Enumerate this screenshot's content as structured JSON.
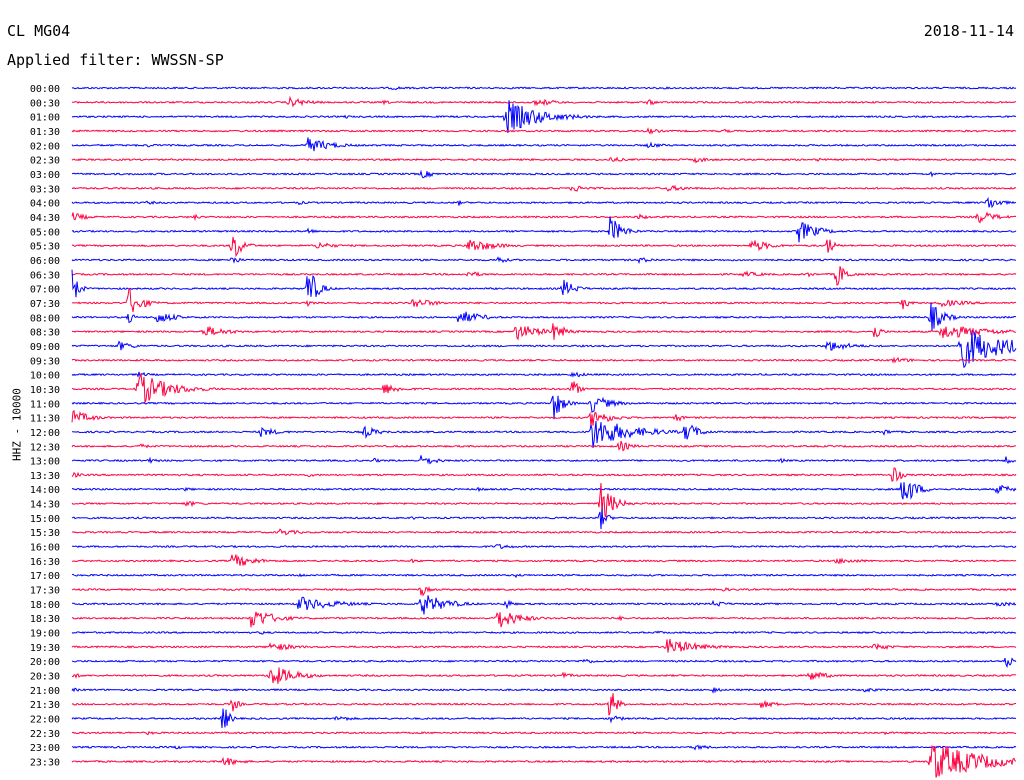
{
  "header": {
    "station": "CL MG04",
    "date": "2018-11-14",
    "filter": "Applied filter: WWSSN-SP"
  },
  "colors": {
    "blue": "#0000ff",
    "red": "#ff0040"
  },
  "chart_data": {
    "type": "line",
    "ylabel": "HHZ - 10000",
    "colors_alternate": [
      "#0000ff",
      "#ff0040"
    ],
    "traces": [
      {
        "label": "00:00",
        "events": [
          {
            "t": 0.34,
            "a": 2,
            "d": 0.025
          }
        ]
      },
      {
        "label": "00:30",
        "events": [
          {
            "t": 0.23,
            "a": 5,
            "d": 0.035
          },
          {
            "t": 0.33,
            "a": 2,
            "d": 0.02
          },
          {
            "t": 0.49,
            "a": 3,
            "d": 0.02
          },
          {
            "t": 0.5,
            "a": 3,
            "d": 0.03
          },
          {
            "t": 0.61,
            "a": 3,
            "d": 0.02
          }
        ]
      },
      {
        "label": "01:00",
        "events": [
          {
            "t": 0.29,
            "a": 2,
            "d": 0.01
          },
          {
            "t": 0.46,
            "a": 18,
            "d": 0.055
          }
        ]
      },
      {
        "label": "01:30",
        "events": [
          {
            "t": 0.61,
            "a": 3,
            "d": 0.025
          },
          {
            "t": 0.69,
            "a": 2,
            "d": 0.02
          }
        ]
      },
      {
        "label": "02:00",
        "events": [
          {
            "t": 0.08,
            "a": 2,
            "d": 0.02
          },
          {
            "t": 0.25,
            "a": 8,
            "d": 0.04
          },
          {
            "t": 0.61,
            "a": 3,
            "d": 0.03
          }
        ]
      },
      {
        "label": "02:30",
        "events": [
          {
            "t": 0.57,
            "a": 3,
            "d": 0.025
          },
          {
            "t": 0.66,
            "a": 3,
            "d": 0.03
          },
          {
            "t": 0.79,
            "a": 2,
            "d": 0.02
          }
        ]
      },
      {
        "label": "03:00",
        "events": [
          {
            "t": 0.37,
            "a": 5,
            "d": 0.02
          },
          {
            "t": 0.91,
            "a": 3,
            "d": 0.01
          }
        ]
      },
      {
        "label": "03:30",
        "events": [
          {
            "t": 0.53,
            "a": 4,
            "d": 0.03
          },
          {
            "t": 0.63,
            "a": 3,
            "d": 0.05
          }
        ]
      },
      {
        "label": "04:00",
        "events": [
          {
            "t": 0.08,
            "a": 2,
            "d": 0.02
          },
          {
            "t": 0.24,
            "a": 2,
            "d": 0.02
          },
          {
            "t": 0.41,
            "a": 3,
            "d": 0.005
          },
          {
            "t": 0.97,
            "a": 8,
            "d": 0.02
          }
        ]
      },
      {
        "label": "04:30",
        "events": [
          {
            "t": 0.0,
            "a": 5,
            "d": 0.025
          },
          {
            "t": 0.13,
            "a": 3,
            "d": 0.01
          },
          {
            "t": 0.6,
            "a": 3,
            "d": 0.02
          },
          {
            "t": 0.96,
            "a": 7,
            "d": 0.03
          }
        ]
      },
      {
        "label": "05:00",
        "events": [
          {
            "t": 0.25,
            "a": 4,
            "d": 0.01
          },
          {
            "t": 0.57,
            "a": 16,
            "d": 0.02
          },
          {
            "t": 0.77,
            "a": 12,
            "d": 0.03
          }
        ]
      },
      {
        "label": "05:30",
        "events": [
          {
            "t": 0.17,
            "a": 18,
            "d": 0.015
          },
          {
            "t": 0.26,
            "a": 4,
            "d": 0.03
          },
          {
            "t": 0.42,
            "a": 8,
            "d": 0.04
          },
          {
            "t": 0.72,
            "a": 7,
            "d": 0.03
          },
          {
            "t": 0.8,
            "a": 11,
            "d": 0.01
          }
        ]
      },
      {
        "label": "06:00",
        "events": [
          {
            "t": 0.17,
            "a": 6,
            "d": 0.01
          },
          {
            "t": 0.45,
            "a": 5,
            "d": 0.015
          },
          {
            "t": 0.6,
            "a": 3,
            "d": 0.03
          }
        ]
      },
      {
        "label": "06:30",
        "events": [
          {
            "t": 0.42,
            "a": 4,
            "d": 0.02
          },
          {
            "t": 0.71,
            "a": 3,
            "d": 0.04
          },
          {
            "t": 0.78,
            "a": 3,
            "d": 0.01
          },
          {
            "t": 0.81,
            "a": 14,
            "d": 0.015
          }
        ]
      },
      {
        "label": "07:00",
        "events": [
          {
            "t": 0.0,
            "a": 20,
            "d": 0.01
          },
          {
            "t": 0.25,
            "a": 24,
            "d": 0.015
          },
          {
            "t": 0.52,
            "a": 10,
            "d": 0.02
          }
        ]
      },
      {
        "label": "07:30",
        "events": [
          {
            "t": 0.06,
            "a": 16,
            "d": 0.02
          },
          {
            "t": 0.25,
            "a": 3,
            "d": 0.01
          },
          {
            "t": 0.36,
            "a": 6,
            "d": 0.035
          },
          {
            "t": 0.88,
            "a": 8,
            "d": 0.01
          },
          {
            "t": 0.92,
            "a": 4,
            "d": 0.05
          }
        ]
      },
      {
        "label": "08:00",
        "events": [
          {
            "t": 0.06,
            "a": 6,
            "d": 0.01
          },
          {
            "t": 0.09,
            "a": 7,
            "d": 0.03
          },
          {
            "t": 0.41,
            "a": 8,
            "d": 0.035
          },
          {
            "t": 0.91,
            "a": 16,
            "d": 0.02
          }
        ]
      },
      {
        "label": "08:30",
        "events": [
          {
            "t": 0.14,
            "a": 6,
            "d": 0.04
          },
          {
            "t": 0.47,
            "a": 9,
            "d": 0.04
          },
          {
            "t": 0.51,
            "a": 10,
            "d": 0.02
          },
          {
            "t": 0.85,
            "a": 10,
            "d": 0.01
          },
          {
            "t": 0.92,
            "a": 8,
            "d": 0.08
          }
        ]
      },
      {
        "label": "09:00",
        "events": [
          {
            "t": 0.05,
            "a": 5,
            "d": 0.025
          },
          {
            "t": 0.8,
            "a": 6,
            "d": 0.04
          },
          {
            "t": 0.94,
            "a": 24,
            "d": 0.07
          }
        ]
      },
      {
        "label": "09:30",
        "events": [
          {
            "t": 0.87,
            "a": 3,
            "d": 0.04
          }
        ]
      },
      {
        "label": "10:00",
        "events": [
          {
            "t": 0.07,
            "a": 3,
            "d": 0.02
          },
          {
            "t": 0.53,
            "a": 3,
            "d": 0.03
          }
        ]
      },
      {
        "label": "10:30",
        "events": [
          {
            "t": 0.07,
            "a": 18,
            "d": 0.05
          },
          {
            "t": 0.33,
            "a": 6,
            "d": 0.03
          },
          {
            "t": 0.53,
            "a": 12,
            "d": 0.01
          }
        ]
      },
      {
        "label": "11:00",
        "events": [
          {
            "t": 0.51,
            "a": 18,
            "d": 0.015
          },
          {
            "t": 0.55,
            "a": 10,
            "d": 0.03
          }
        ]
      },
      {
        "label": "11:30",
        "events": [
          {
            "t": 0.0,
            "a": 8,
            "d": 0.03
          },
          {
            "t": 0.55,
            "a": 10,
            "d": 0.03
          },
          {
            "t": 0.64,
            "a": 6,
            "d": 0.01
          }
        ]
      },
      {
        "label": "12:00",
        "events": [
          {
            "t": 0.2,
            "a": 5,
            "d": 0.03
          },
          {
            "t": 0.31,
            "a": 6,
            "d": 0.025
          },
          {
            "t": 0.55,
            "a": 18,
            "d": 0.06
          },
          {
            "t": 0.65,
            "a": 12,
            "d": 0.02
          },
          {
            "t": 0.86,
            "a": 3,
            "d": 0.02
          }
        ]
      },
      {
        "label": "12:30",
        "events": [
          {
            "t": 0.07,
            "a": 3,
            "d": 0.02
          },
          {
            "t": 0.58,
            "a": 6,
            "d": 0.02
          },
          {
            "t": 0.69,
            "a": 2,
            "d": 0.02
          }
        ]
      },
      {
        "label": "13:00",
        "events": [
          {
            "t": 0.08,
            "a": 3,
            "d": 0.02
          },
          {
            "t": 0.32,
            "a": 3,
            "d": 0.01
          },
          {
            "t": 0.37,
            "a": 6,
            "d": 0.025
          },
          {
            "t": 0.75,
            "a": 3,
            "d": 0.01
          },
          {
            "t": 0.99,
            "a": 5,
            "d": 0.01
          }
        ]
      },
      {
        "label": "13:30",
        "events": [
          {
            "t": 0.0,
            "a": 3,
            "d": 0.02
          },
          {
            "t": 0.25,
            "a": 2,
            "d": 0.02
          },
          {
            "t": 0.87,
            "a": 14,
            "d": 0.01
          }
        ]
      },
      {
        "label": "14:00",
        "events": [
          {
            "t": 0.12,
            "a": 2,
            "d": 0.02
          },
          {
            "t": 0.43,
            "a": 2,
            "d": 0.02
          },
          {
            "t": 0.88,
            "a": 20,
            "d": 0.02
          },
          {
            "t": 0.98,
            "a": 5,
            "d": 0.03
          }
        ]
      },
      {
        "label": "14:30",
        "events": [
          {
            "t": 0.12,
            "a": 3,
            "d": 0.03
          },
          {
            "t": 0.56,
            "a": 22,
            "d": 0.02
          }
        ]
      },
      {
        "label": "15:00",
        "events": [
          {
            "t": 0.36,
            "a": 2,
            "d": 0.02
          },
          {
            "t": 0.56,
            "a": 12,
            "d": 0.01
          }
        ]
      },
      {
        "label": "15:30",
        "events": [
          {
            "t": 0.22,
            "a": 4,
            "d": 0.03
          }
        ]
      },
      {
        "label": "16:00",
        "events": [
          {
            "t": 0.45,
            "a": 3,
            "d": 0.03
          }
        ]
      },
      {
        "label": "16:30",
        "events": [
          {
            "t": 0.17,
            "a": 8,
            "d": 0.035
          },
          {
            "t": 0.36,
            "a": 2,
            "d": 0.02
          },
          {
            "t": 0.81,
            "a": 3,
            "d": 0.05
          }
        ]
      },
      {
        "label": "17:00",
        "events": [
          {
            "t": 0.24,
            "a": 2,
            "d": 0.02
          },
          {
            "t": 0.47,
            "a": 2,
            "d": 0.02
          }
        ]
      },
      {
        "label": "17:30",
        "events": [
          {
            "t": 0.37,
            "a": 8,
            "d": 0.01
          },
          {
            "t": 0.69,
            "a": 2,
            "d": 0.02
          }
        ]
      },
      {
        "label": "18:00",
        "events": [
          {
            "t": 0.24,
            "a": 8,
            "d": 0.06
          },
          {
            "t": 0.37,
            "a": 12,
            "d": 0.04
          },
          {
            "t": 0.46,
            "a": 6,
            "d": 0.01
          },
          {
            "t": 0.68,
            "a": 4,
            "d": 0.02
          },
          {
            "t": 0.98,
            "a": 3,
            "d": 0.03
          }
        ]
      },
      {
        "label": "18:30",
        "events": [
          {
            "t": 0.19,
            "a": 12,
            "d": 0.035
          },
          {
            "t": 0.45,
            "a": 12,
            "d": 0.035
          },
          {
            "t": 0.58,
            "a": 2,
            "d": 0.02
          }
        ]
      },
      {
        "label": "19:00",
        "events": [
          {
            "t": 0.2,
            "a": 2,
            "d": 0.02
          },
          {
            "t": 0.62,
            "a": 2,
            "d": 0.02
          }
        ]
      },
      {
        "label": "19:30",
        "events": [
          {
            "t": 0.21,
            "a": 5,
            "d": 0.04
          },
          {
            "t": 0.63,
            "a": 9,
            "d": 0.05
          },
          {
            "t": 0.85,
            "a": 4,
            "d": 0.03
          }
        ]
      },
      {
        "label": "20:00",
        "events": [
          {
            "t": 0.54,
            "a": 3,
            "d": 0.03
          },
          {
            "t": 0.99,
            "a": 8,
            "d": 0.01
          }
        ]
      },
      {
        "label": "20:30",
        "events": [
          {
            "t": 0.0,
            "a": 3,
            "d": 0.02
          },
          {
            "t": 0.21,
            "a": 12,
            "d": 0.04
          },
          {
            "t": 0.52,
            "a": 3,
            "d": 0.02
          },
          {
            "t": 0.78,
            "a": 6,
            "d": 0.03
          }
        ]
      },
      {
        "label": "21:00",
        "events": [
          {
            "t": 0.0,
            "a": 2,
            "d": 0.02
          },
          {
            "t": 0.68,
            "a": 4,
            "d": 0.01
          },
          {
            "t": 0.84,
            "a": 3,
            "d": 0.02
          }
        ]
      },
      {
        "label": "21:30",
        "events": [
          {
            "t": 0.17,
            "a": 8,
            "d": 0.01
          },
          {
            "t": 0.57,
            "a": 20,
            "d": 0.01
          },
          {
            "t": 0.73,
            "a": 4,
            "d": 0.03
          }
        ]
      },
      {
        "label": "22:00",
        "events": [
          {
            "t": 0.16,
            "a": 16,
            "d": 0.01
          },
          {
            "t": 0.28,
            "a": 3,
            "d": 0.03
          },
          {
            "t": 0.57,
            "a": 4,
            "d": 0.02
          }
        ]
      },
      {
        "label": "22:30",
        "events": [
          {
            "t": 0.08,
            "a": 2,
            "d": 0.02
          },
          {
            "t": 0.86,
            "a": 2,
            "d": 0.02
          }
        ]
      },
      {
        "label": "23:00",
        "events": [
          {
            "t": 0.11,
            "a": 2,
            "d": 0.02
          },
          {
            "t": 0.66,
            "a": 3,
            "d": 0.03
          }
        ]
      },
      {
        "label": "23:30",
        "events": [
          {
            "t": 0.16,
            "a": 5,
            "d": 0.03
          },
          {
            "t": 0.91,
            "a": 22,
            "d": 0.08
          }
        ]
      }
    ]
  }
}
